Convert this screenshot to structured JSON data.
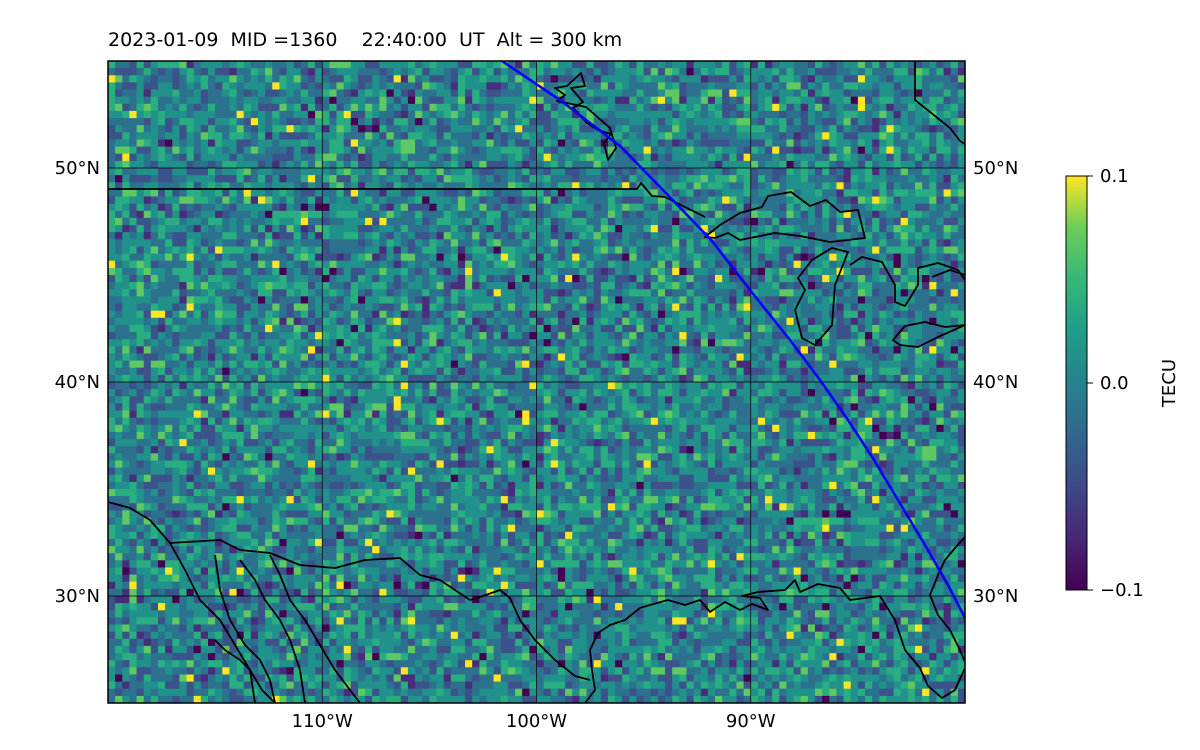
{
  "title": "2023-01-09  MID =1360    22:40:00  UT  Alt = 300 km",
  "map": {
    "lon_range": [
      -120,
      -80
    ],
    "lat_range": [
      25,
      55
    ],
    "lat_ticks": [
      {
        "value": 50,
        "label": "50°N"
      },
      {
        "value": 40,
        "label": "40°N"
      },
      {
        "value": 30,
        "label": "30°N"
      }
    ],
    "lon_ticks": [
      {
        "value": -110,
        "label": "110°W"
      },
      {
        "value": -100,
        "label": "100°W"
      },
      {
        "value": -90,
        "label": "90°W"
      }
    ],
    "gridlines": true,
    "terminator_color": "#0000ff",
    "coastline_color": "#000000"
  },
  "colorbar": {
    "label": "TECU",
    "colormap": "viridis",
    "min": -0.1,
    "max": 0.1,
    "ticks": [
      {
        "value": 0.1,
        "label": "0.1"
      },
      {
        "value": 0.0,
        "label": "0.0"
      },
      {
        "value": -0.1,
        "label": "−0.1"
      }
    ]
  }
}
